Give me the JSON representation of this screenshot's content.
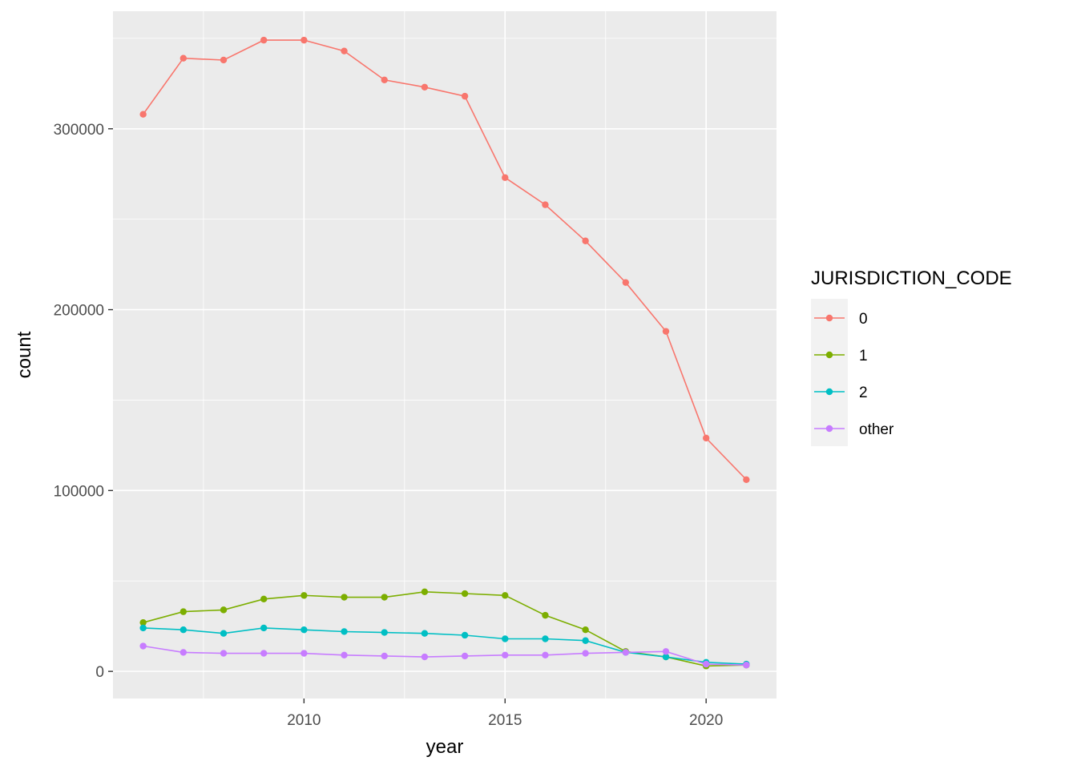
{
  "chart_data": {
    "type": "line",
    "xlabel": "year",
    "ylabel": "count",
    "xlim": [
      2005.25,
      2021.75
    ],
    "ylim": [
      -15000,
      365000
    ],
    "x_ticks": [
      2010,
      2015,
      2020
    ],
    "y_ticks": [
      0,
      100000,
      200000,
      300000
    ],
    "x_tick_labels": [
      "2010",
      "2015",
      "2020"
    ],
    "y_tick_labels": [
      "0",
      "100000",
      "200000",
      "300000"
    ],
    "grid": true,
    "legend_position": "right",
    "legend_title": "JURISDICTION_CODE",
    "x": [
      2006,
      2007,
      2008,
      2009,
      2010,
      2011,
      2012,
      2013,
      2014,
      2015,
      2016,
      2017,
      2018,
      2019,
      2020,
      2021
    ],
    "series": [
      {
        "name": "0",
        "color": "#F8766D",
        "values": [
          308000,
          339000,
          338000,
          349000,
          349000,
          343000,
          327000,
          323000,
          318000,
          273000,
          258000,
          238000,
          215000,
          188000,
          129000,
          106000
        ]
      },
      {
        "name": "1",
        "color": "#7CAE00",
        "values": [
          27000,
          33000,
          34000,
          40000,
          42000,
          41000,
          41000,
          44000,
          43000,
          42000,
          31000,
          23000,
          11000,
          8000,
          3000,
          3500
        ]
      },
      {
        "name": "2",
        "color": "#00BFC4",
        "values": [
          24000,
          23000,
          21000,
          24000,
          23000,
          22000,
          21500,
          21000,
          20000,
          18000,
          18000,
          17000,
          10500,
          8000,
          5000,
          4000
        ]
      },
      {
        "name": "other",
        "color": "#C77CFF",
        "values": [
          14000,
          10500,
          10000,
          10000,
          10000,
          9000,
          8500,
          8000,
          8500,
          9000,
          9000,
          10000,
          10500,
          11000,
          4000,
          3500
        ]
      }
    ]
  }
}
